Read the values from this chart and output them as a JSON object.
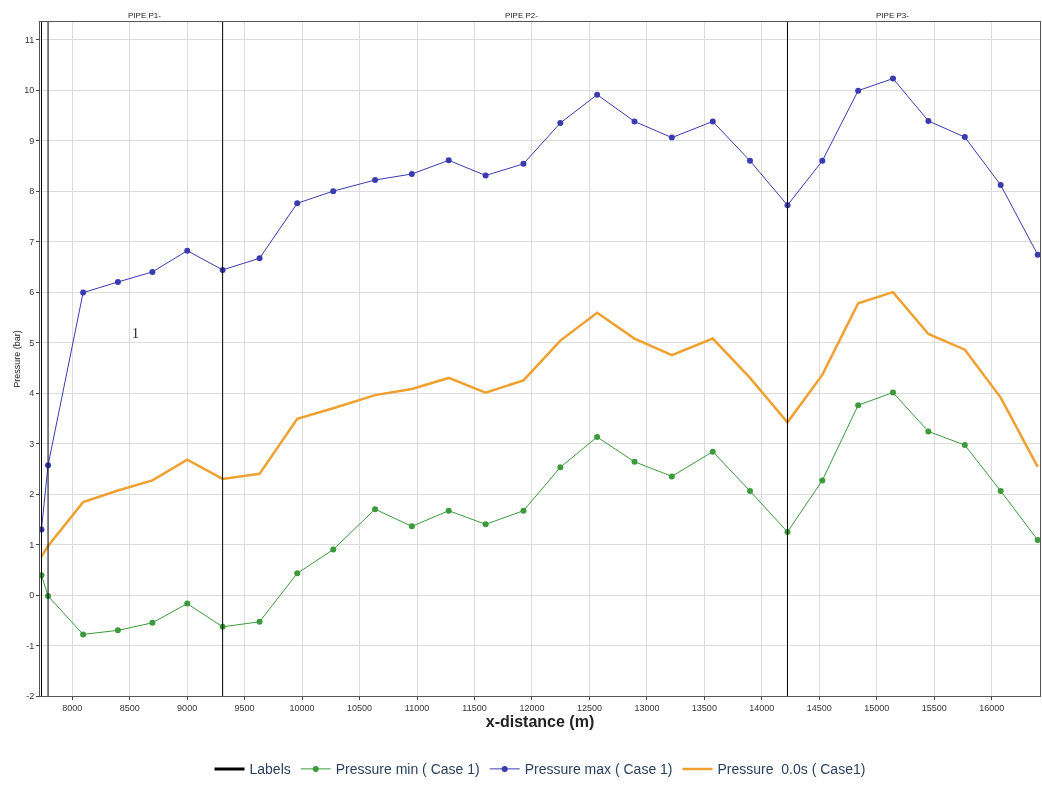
{
  "chart_data": {
    "type": "line",
    "xlabel": "x-distance (m)",
    "ylabel": "Pressure (bar)",
    "x": [
      7733,
      7790,
      8095,
      8398,
      8698,
      9001,
      9309,
      9630,
      9958,
      10271,
      10635,
      10955,
      11276,
      11597,
      11926,
      12247,
      12567,
      12892,
      13217,
      13573,
      13897,
      14223,
      14526,
      14838,
      15141,
      15449,
      15766,
      16078,
      16400
    ],
    "series": [
      {
        "name": "Labels",
        "color": "#000000",
        "marker": "none",
        "values": [
          null,
          null,
          null,
          null,
          null,
          null,
          null,
          null,
          null,
          null,
          null,
          null,
          null,
          null,
          null,
          null,
          null,
          null,
          null,
          null,
          null,
          null,
          null,
          null,
          null,
          null,
          null,
          null,
          null
        ]
      },
      {
        "name": "Pressure min ( Case 1)",
        "color": "#3c9a3c",
        "marker": "circle",
        "values": [
          0.39,
          -0.02,
          -0.78,
          -0.7,
          -0.55,
          -0.17,
          -0.63,
          -0.53,
          0.43,
          0.9,
          1.7,
          1.36,
          1.67,
          1.4,
          1.67,
          2.53,
          3.13,
          2.64,
          2.35,
          2.84,
          2.06,
          1.25,
          2.27,
          3.76,
          4.01,
          3.24,
          2.97,
          2.06,
          1.09
        ]
      },
      {
        "name": "Pressure max ( Case 1)",
        "color": "#3b3bb0",
        "marker": "circle",
        "values": [
          1.3,
          2.57,
          5.99,
          6.2,
          6.4,
          6.82,
          6.44,
          6.67,
          7.76,
          8.0,
          8.22,
          8.34,
          8.61,
          8.31,
          8.54,
          9.35,
          9.91,
          9.38,
          9.06,
          9.38,
          8.6,
          7.72,
          8.6,
          9.99,
          10.23,
          9.39,
          9.07,
          8.12,
          6.74
        ]
      },
      {
        "name": "Pressure  0.0s ( Case1)",
        "color": "#f0a030",
        "marker": "none",
        "values": [
          0.76,
          0.97,
          1.84,
          2.07,
          2.27,
          2.68,
          2.3,
          2.4,
          3.49,
          3.7,
          3.96,
          4.08,
          4.3,
          4.01,
          4.25,
          5.04,
          5.59,
          5.08,
          4.75,
          5.08,
          4.3,
          3.42,
          4.36,
          5.78,
          6.0,
          5.17,
          4.86,
          3.91,
          2.54
        ]
      }
    ],
    "ref_lines": [
      {
        "axis": "x",
        "value": 7733,
        "color": "#000000"
      },
      {
        "axis": "x",
        "value": 7790,
        "color": "#000000"
      },
      {
        "axis": "x",
        "value": 9309,
        "color": "#000000"
      },
      {
        "axis": "x",
        "value": 14223,
        "color": "#000000"
      }
    ],
    "annotations": [
      "PIPE P1-",
      "PIPE P2-",
      "PIPE P3-",
      "1"
    ],
    "xlim": [
      7720,
      16420
    ],
    "xticks": [
      8000,
      8500,
      9000,
      9500,
      10000,
      10500,
      11000,
      11500,
      12000,
      12500,
      13000,
      13500,
      14000,
      14500,
      15000,
      15500,
      16000
    ],
    "ylim": [
      -2,
      11.35
    ],
    "yticks": [
      -2,
      -1,
      0,
      1,
      2,
      3,
      4,
      5,
      6,
      7,
      8,
      9,
      10,
      11
    ],
    "grid": true,
    "legend": "bottom"
  }
}
